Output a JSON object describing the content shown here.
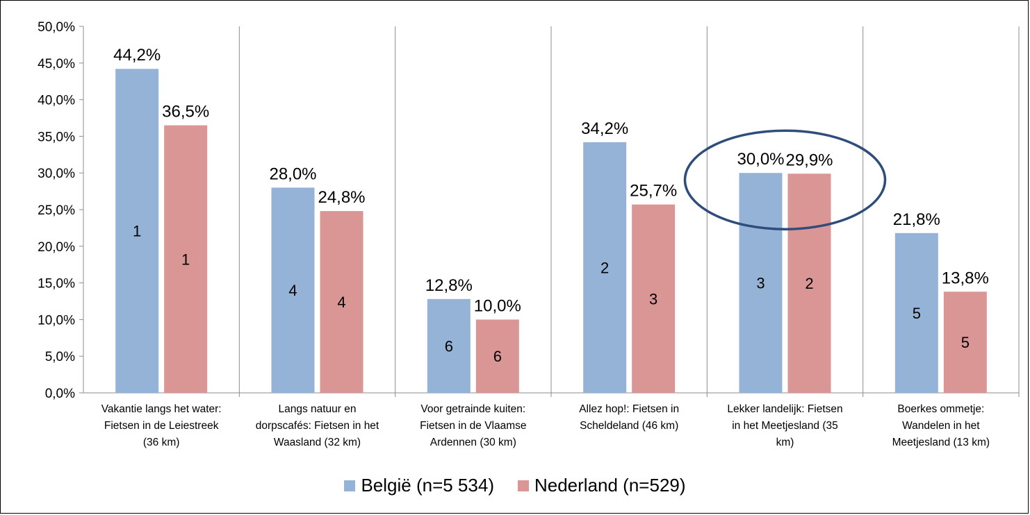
{
  "chart_data": {
    "type": "bar",
    "categories": [
      [
        "Vakantie langs het water:",
        "Fietsen in de Leiestreek",
        "(36 km)"
      ],
      [
        "Langs natuur en",
        "dorpscafés: Fietsen in het",
        "Waasland (32 km)"
      ],
      [
        "Voor getrainde kuiten:",
        "Fietsen in de Vlaamse",
        "Ardennen (30 km)"
      ],
      [
        "Allez hop!: Fietsen in",
        "Scheldeland (46 km)"
      ],
      [
        "Lekker landelijk: Fietsen",
        "in het Meetjesland (35",
        "km)"
      ],
      [
        "Boerkes ommetje:",
        "Wandelen in het",
        "Meetjesland (13 km)"
      ]
    ],
    "series": [
      {
        "name": "België (n=5 534)",
        "color": "#95b3d7",
        "values": [
          44.2,
          28.0,
          12.8,
          34.2,
          30.0,
          21.8
        ],
        "value_labels": [
          "44,2%",
          "28,0%",
          "12,8%",
          "34,2%",
          "30,0%",
          "21,8%"
        ],
        "ranks": [
          "1",
          "4",
          "6",
          "2",
          "3",
          "5"
        ]
      },
      {
        "name": "Nederland (n=529)",
        "color": "#d99694",
        "values": [
          36.5,
          24.8,
          10.0,
          25.7,
          29.9,
          13.8
        ],
        "value_labels": [
          "36,5%",
          "24,8%",
          "10,0%",
          "25,7%",
          "29,9%",
          "13,8%"
        ],
        "ranks": [
          "1",
          "4",
          "6",
          "3",
          "2",
          "5"
        ]
      }
    ],
    "y_ticks": [
      "0,0%",
      "5,0%",
      "10,0%",
      "15,0%",
      "20,0%",
      "25,0%",
      "30,0%",
      "35,0%",
      "40,0%",
      "45,0%",
      "50,0%"
    ],
    "ylim": [
      0,
      50
    ],
    "grid": "vertical category separators",
    "legend_position": "bottom",
    "annotation": {
      "type": "ellipse",
      "target_category_index": 4,
      "color": "#2e4d7b"
    }
  }
}
